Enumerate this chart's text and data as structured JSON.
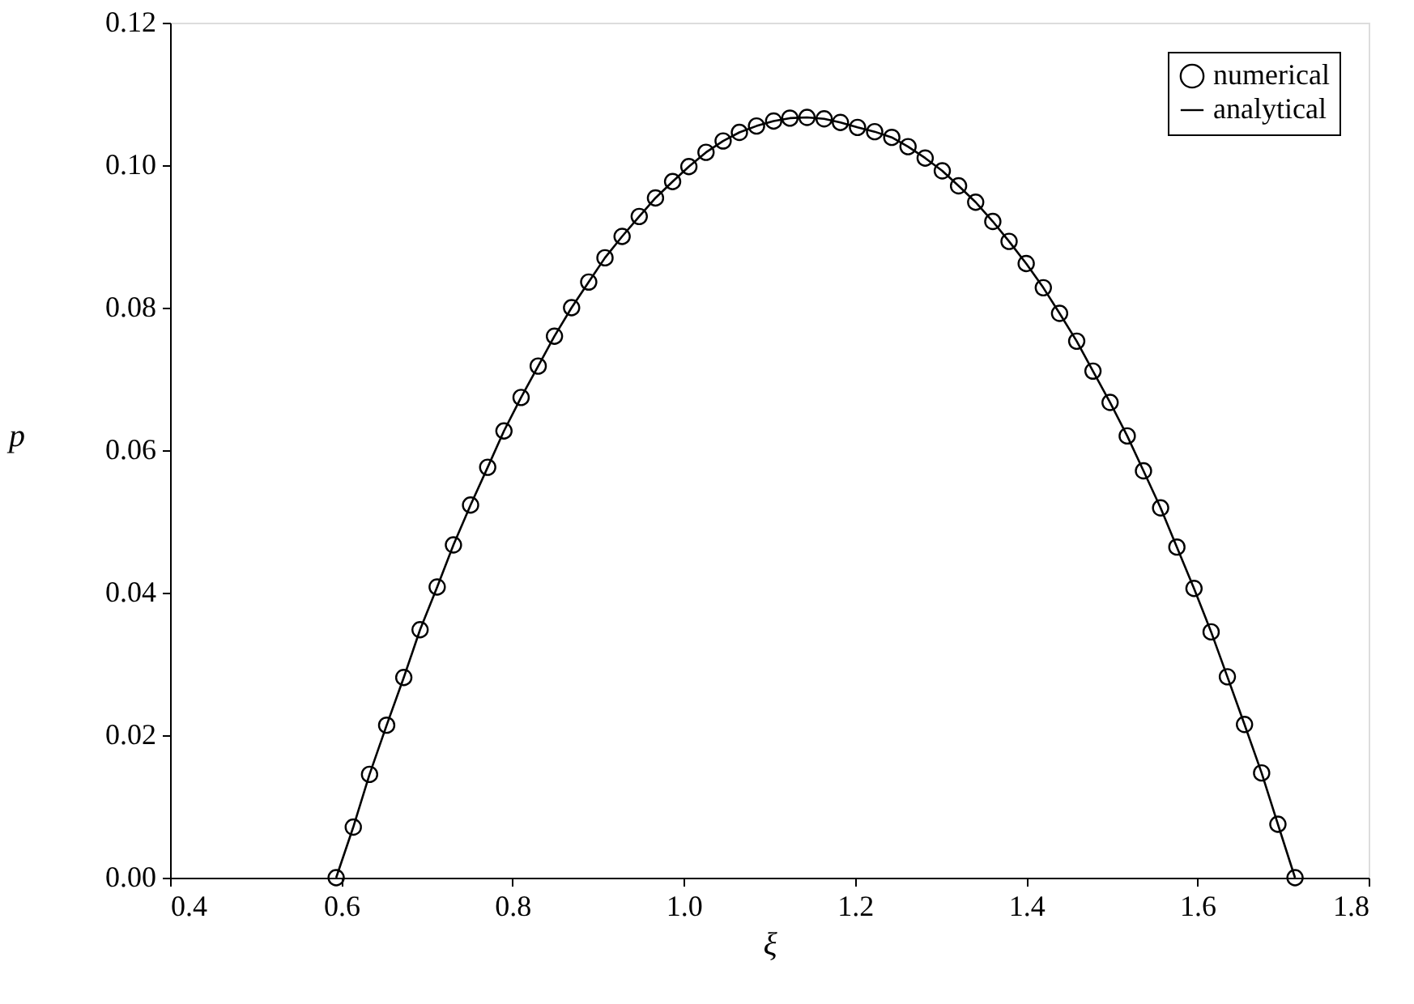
{
  "chart_data": {
    "type": "scatter",
    "xlabel": "ξ",
    "ylabel": "p",
    "x": [
      0.594,
      0.614,
      0.633,
      0.653,
      0.673,
      0.692,
      0.712,
      0.731,
      0.751,
      0.771,
      0.79,
      0.81,
      0.83,
      0.849,
      0.869,
      0.889,
      0.908,
      0.928,
      0.948,
      0.967,
      0.987,
      1.006,
      1.026,
      1.046,
      1.065,
      1.085,
      1.105,
      1.124,
      1.144,
      1.164,
      1.183,
      1.203,
      1.223,
      1.243,
      1.262,
      1.282,
      1.302,
      1.321,
      1.341,
      1.361,
      1.38,
      1.4,
      1.42,
      1.439,
      1.459,
      1.478,
      1.498,
      1.518,
      1.537,
      1.557,
      1.576,
      1.596,
      1.616,
      1.635,
      1.655,
      1.675,
      1.694,
      1.714
    ],
    "series": [
      {
        "name": "numerical",
        "marker": "circle",
        "color": "#000000",
        "values": [
          0,
          0.0071,
          0.0145,
          0.0214,
          0.0281,
          0.0348,
          0.0408,
          0.0467,
          0.0523,
          0.0576,
          0.0627,
          0.0674,
          0.0718,
          0.076,
          0.08,
          0.0836,
          0.087,
          0.09,
          0.0928,
          0.0954,
          0.0977,
          0.0998,
          0.1018,
          0.1034,
          0.1046,
          0.1055,
          0.1062,
          0.1066,
          0.1067,
          0.1065,
          0.106,
          0.1053,
          0.1047,
          0.1039,
          0.1026,
          0.101,
          0.0992,
          0.0971,
          0.0948,
          0.0921,
          0.0893,
          0.0862,
          0.0828,
          0.0792,
          0.0753,
          0.0711,
          0.0667,
          0.062,
          0.0571,
          0.0519,
          0.0464,
          0.0406,
          0.0345,
          0.0282,
          0.0215,
          0.0147,
          0.0075,
          0
        ]
      },
      {
        "name": "analytical",
        "type": "line",
        "line_style": "solid",
        "color": "#000000",
        "values": [
          0,
          0.0071,
          0.0145,
          0.0214,
          0.0281,
          0.0348,
          0.0408,
          0.0467,
          0.0523,
          0.0576,
          0.0627,
          0.0674,
          0.0718,
          0.076,
          0.08,
          0.0836,
          0.087,
          0.09,
          0.0928,
          0.0954,
          0.0977,
          0.0998,
          0.1018,
          0.1034,
          0.1046,
          0.1055,
          0.1062,
          0.1066,
          0.1067,
          0.1065,
          0.106,
          0.1053,
          0.1047,
          0.1039,
          0.1026,
          0.101,
          0.0992,
          0.0971,
          0.0948,
          0.0921,
          0.0893,
          0.0862,
          0.0828,
          0.0792,
          0.0753,
          0.0711,
          0.0667,
          0.062,
          0.0571,
          0.0519,
          0.0464,
          0.0406,
          0.0345,
          0.0282,
          0.0215,
          0.0147,
          0.0075,
          0
        ]
      }
    ],
    "xlim": [
      0.4,
      1.8
    ],
    "xticks": [
      {
        "value": 0.4,
        "label": "0.4"
      },
      {
        "value": 0.6,
        "label": "0.6"
      },
      {
        "value": 0.8,
        "label": "0.8"
      },
      {
        "value": 1.0,
        "label": "1.0"
      },
      {
        "value": 1.2,
        "label": "1.2"
      },
      {
        "value": 1.4,
        "label": "1.4"
      },
      {
        "value": 1.6,
        "label": "1.6"
      },
      {
        "value": 1.8,
        "label": "1.8"
      }
    ],
    "ylim": [
      0,
      0.12
    ],
    "yticks": [
      {
        "value": 0,
        "label": "0.00"
      },
      {
        "value": 0.02,
        "label": "0.02"
      },
      {
        "value": 0.04,
        "label": "0.04"
      },
      {
        "value": 0.06,
        "label": "0.06"
      },
      {
        "value": 0.08,
        "label": "0.08"
      },
      {
        "value": 0.1,
        "label": "0.10"
      },
      {
        "value": 0.12,
        "label": "0.12"
      }
    ],
    "grid": false,
    "legend": "top right"
  }
}
